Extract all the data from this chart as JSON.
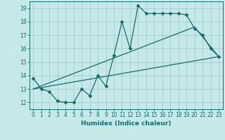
{
  "xlabel": "Humidex (Indice chaleur)",
  "ylabel": "",
  "bg_color": "#c5e8e8",
  "grid_color": "#a8d0d0",
  "line_color": "#1a6b6b",
  "xlim": [
    -0.5,
    23.5
  ],
  "ylim": [
    11.5,
    19.5
  ],
  "xticks": [
    0,
    1,
    2,
    3,
    4,
    5,
    6,
    7,
    8,
    9,
    10,
    11,
    12,
    13,
    14,
    15,
    16,
    17,
    18,
    19,
    20,
    21,
    22,
    23
  ],
  "yticks": [
    12,
    13,
    14,
    15,
    16,
    17,
    18,
    19
  ],
  "line1_x": [
    0,
    1,
    2,
    3,
    4,
    5,
    6,
    7,
    8,
    9,
    10,
    11,
    12,
    13,
    14,
    15,
    16,
    17,
    18,
    19,
    20,
    21,
    22,
    23
  ],
  "line1_y": [
    13.8,
    13.0,
    12.8,
    12.1,
    12.0,
    12.0,
    13.0,
    12.5,
    14.0,
    13.2,
    15.5,
    18.0,
    16.0,
    19.2,
    18.6,
    18.6,
    18.6,
    18.6,
    18.6,
    18.5,
    17.5,
    17.0,
    16.0,
    15.4
  ],
  "line2_x": [
    0,
    23
  ],
  "line2_y": [
    13.0,
    15.4
  ],
  "line3_x": [
    0,
    20,
    23
  ],
  "line3_y": [
    13.0,
    17.6,
    15.4
  ]
}
